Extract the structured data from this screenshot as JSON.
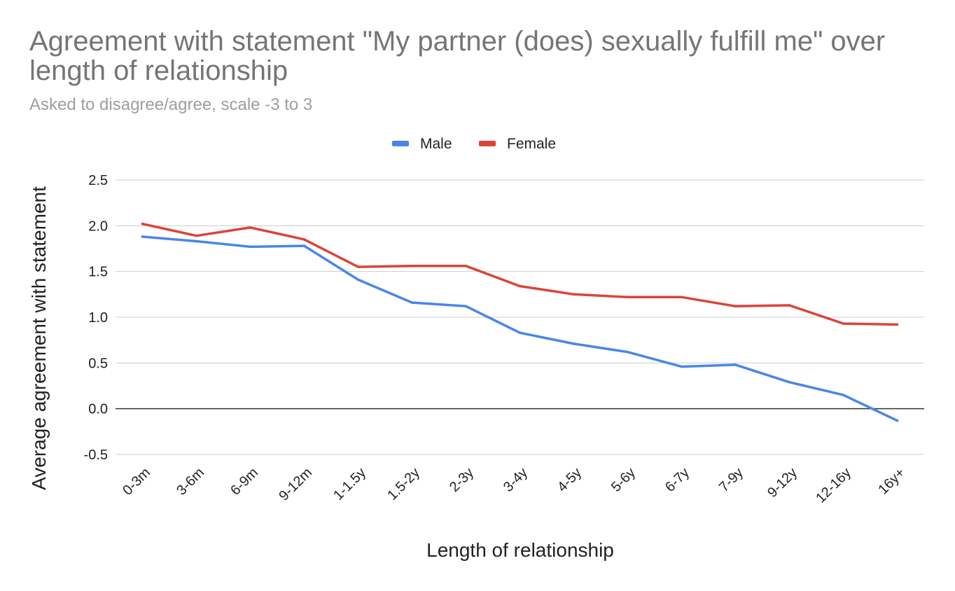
{
  "chart_data": {
    "type": "line",
    "title": "Agreement with statement \"My partner (does) sexually fulfill me\" over length of relationship",
    "subtitle": "Asked to disagree/agree, scale -3 to 3",
    "xlabel": "Length of relationship",
    "ylabel": "Average agreement with statement",
    "categories": [
      "0-3m",
      "3-6m",
      "6-9m",
      "9-12m",
      "1-1.5y",
      "1.5-2y",
      "2-3y",
      "3-4y",
      "4-5y",
      "5-6y",
      "6-7y",
      "7-9y",
      "9-12y",
      "12-16y",
      "16y+"
    ],
    "series": [
      {
        "name": "Male",
        "color": "#4a86e8",
        "values": [
          1.88,
          1.83,
          1.77,
          1.78,
          1.41,
          1.16,
          1.12,
          0.83,
          0.71,
          0.62,
          0.46,
          0.48,
          0.29,
          0.15,
          -0.13
        ]
      },
      {
        "name": "Female",
        "color": "#db4437",
        "values": [
          2.02,
          1.89,
          1.98,
          1.85,
          1.55,
          1.56,
          1.56,
          1.34,
          1.25,
          1.22,
          1.22,
          1.12,
          1.13,
          0.93,
          0.92
        ]
      }
    ],
    "ylim": [
      -0.5,
      2.5
    ],
    "yticks": [
      "2.5",
      "2.0",
      "1.5",
      "1.0",
      "0.5",
      "0.0",
      "-0.5"
    ],
    "grid": true,
    "legend_position": "top-center"
  }
}
